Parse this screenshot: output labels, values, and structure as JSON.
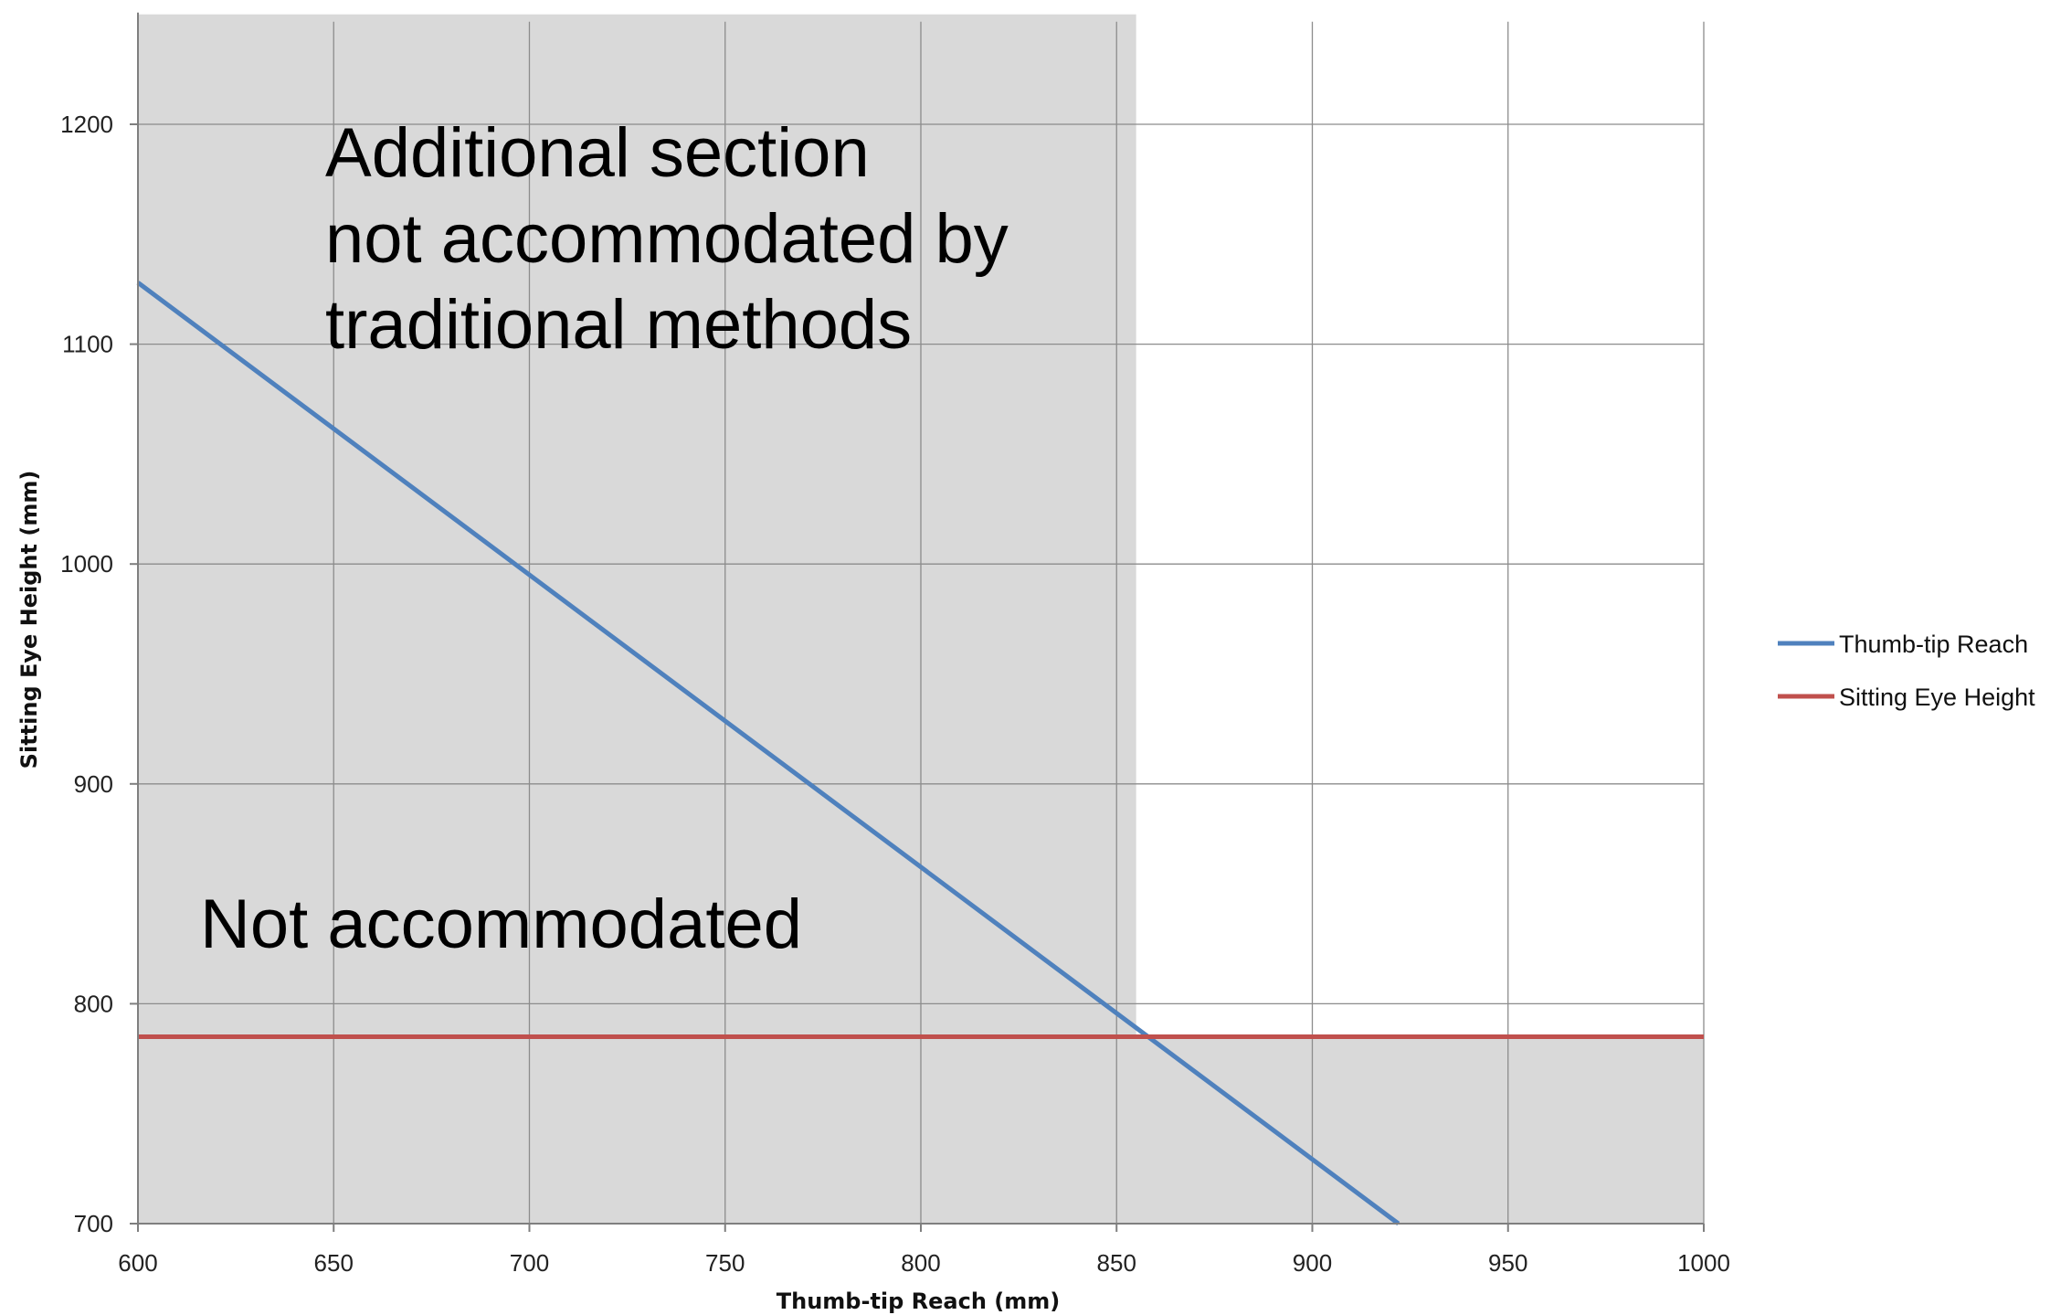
{
  "chart_data": {
    "type": "line",
    "xlabel": "Thumb-tip Reach (mm)",
    "ylabel": "Sitting Eye Height (mm)",
    "xlim": [
      600,
      1000
    ],
    "ylim": [
      700,
      1250
    ],
    "xticks": [
      600,
      650,
      700,
      750,
      800,
      850,
      900,
      950,
      1000
    ],
    "yticks": [
      700,
      800,
      900,
      1000,
      1100,
      1200
    ],
    "grid": true,
    "legend_position": "right",
    "series": [
      {
        "name": "Thumb-tip Reach",
        "color": "#4f81bd",
        "x": [
          600,
          922
        ],
        "y": [
          1128,
          700
        ]
      },
      {
        "name": "Sitting Eye Height",
        "color": "#c0504d",
        "x": [
          600,
          1000
        ],
        "y": [
          785,
          785
        ]
      }
    ],
    "regions": [
      {
        "label": "Additional section not accommodated by traditional methods",
        "x": [
          600,
          855
        ],
        "y": [
          785,
          1250
        ],
        "color": "#d9d9d9"
      },
      {
        "label": "Not accommodated",
        "x": [
          600,
          1000
        ],
        "y": [
          700,
          785
        ],
        "color": "#d9d9d9"
      }
    ],
    "annotations": [
      {
        "lines": [
          "Additional section",
          "not accommodated by",
          "traditional methods"
        ]
      },
      {
        "lines": [
          "Not accommodated"
        ]
      }
    ]
  }
}
